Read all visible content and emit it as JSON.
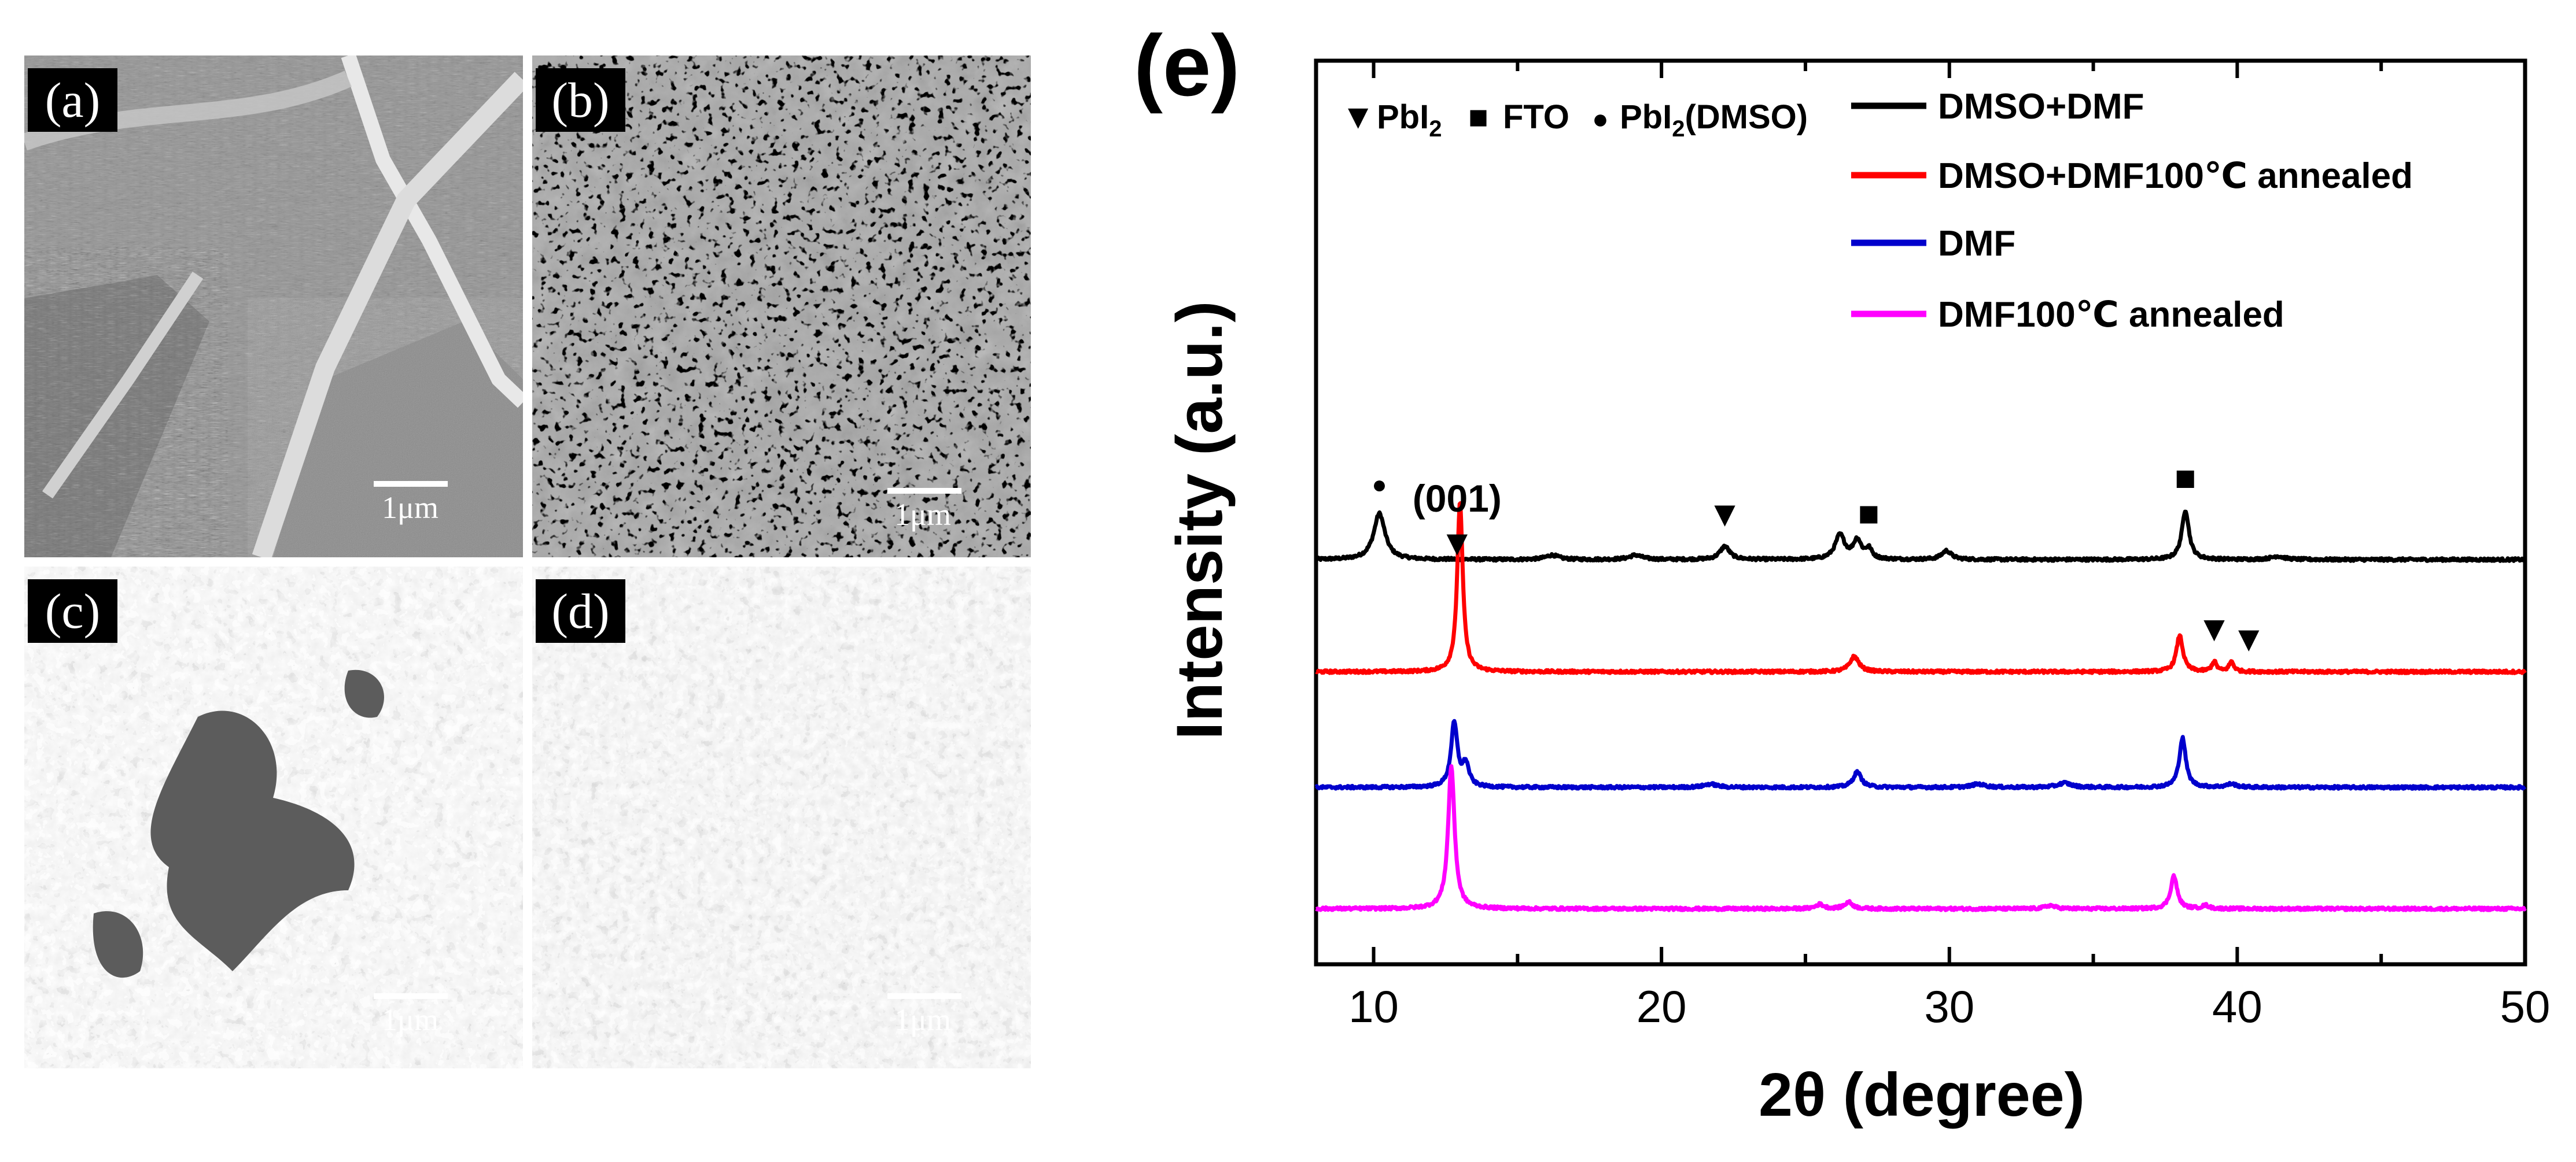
{
  "figure": {
    "sem_panels": [
      {
        "label": "(a)",
        "scale_text": "1μm"
      },
      {
        "label": "(b)",
        "scale_text": "1μm"
      },
      {
        "label": "(c)",
        "scale_text": "1μm"
      },
      {
        "label": "(d)",
        "scale_text": "1μm"
      }
    ]
  },
  "chart_data": {
    "type": "line",
    "panel_label": "(e)",
    "xlabel": "2θ (degree)",
    "ylabel": "Intensity (a.u.)",
    "xlim": [
      8,
      50
    ],
    "xticks": [
      10,
      20,
      30,
      40,
      50
    ],
    "yticks_shown": false,
    "grid": false,
    "symbol_legend": [
      {
        "symbol": "▼",
        "label": "PbI",
        "subscript": "2"
      },
      {
        "symbol": "■",
        "label": "FTO"
      },
      {
        "symbol": "●",
        "label": "PbI",
        "subscript": "2",
        "suffix": "(DMSO)"
      }
    ],
    "legend_position": "top-right",
    "series": [
      {
        "name": "DMSO+DMF",
        "color": "#000000",
        "peaks": [
          {
            "x": 10.2,
            "h": 0.42,
            "w": 0.35
          },
          {
            "x": 16.2,
            "h": 0.04,
            "w": 0.4
          },
          {
            "x": 19.1,
            "h": 0.04,
            "w": 0.4
          },
          {
            "x": 22.2,
            "h": 0.12,
            "w": 0.3
          },
          {
            "x": 26.2,
            "h": 0.22,
            "w": 0.3
          },
          {
            "x": 26.8,
            "h": 0.17,
            "w": 0.25
          },
          {
            "x": 27.2,
            "h": 0.09,
            "w": 0.2
          },
          {
            "x": 29.9,
            "h": 0.08,
            "w": 0.3
          },
          {
            "x": 38.2,
            "h": 0.45,
            "w": 0.22
          },
          {
            "x": 41.4,
            "h": 0.03,
            "w": 0.4
          }
        ]
      },
      {
        "name": "DMSO+DMF100℃ annealed",
        "color": "#ff0000",
        "peaks": [
          {
            "x": 13.0,
            "h": 1.55,
            "w": 0.17
          },
          {
            "x": 26.7,
            "h": 0.14,
            "w": 0.28
          },
          {
            "x": 38.0,
            "h": 0.33,
            "w": 0.2
          },
          {
            "x": 39.2,
            "h": 0.09,
            "w": 0.15
          },
          {
            "x": 39.8,
            "h": 0.09,
            "w": 0.15
          }
        ]
      },
      {
        "name": "DMF",
        "color": "#0000cc",
        "peaks": [
          {
            "x": 12.8,
            "h": 0.58,
            "w": 0.2
          },
          {
            "x": 13.2,
            "h": 0.2,
            "w": 0.2
          },
          {
            "x": 21.7,
            "h": 0.03,
            "w": 0.4
          },
          {
            "x": 26.8,
            "h": 0.14,
            "w": 0.25
          },
          {
            "x": 31.0,
            "h": 0.03,
            "w": 0.4
          },
          {
            "x": 34.0,
            "h": 0.04,
            "w": 0.4
          },
          {
            "x": 38.1,
            "h": 0.45,
            "w": 0.2
          },
          {
            "x": 39.8,
            "h": 0.03,
            "w": 0.3
          }
        ]
      },
      {
        "name": "DMF100℃ annealed",
        "color": "#ff00ff",
        "peaks": [
          {
            "x": 12.7,
            "h": 1.3,
            "w": 0.2
          },
          {
            "x": 25.5,
            "h": 0.04,
            "w": 0.25
          },
          {
            "x": 26.5,
            "h": 0.06,
            "w": 0.25
          },
          {
            "x": 33.5,
            "h": 0.03,
            "w": 0.3
          },
          {
            "x": 37.8,
            "h": 0.3,
            "w": 0.2
          },
          {
            "x": 38.9,
            "h": 0.03,
            "w": 0.2
          }
        ]
      }
    ],
    "annotations": [
      {
        "text": "(001)",
        "x": 12.9,
        "series": 1,
        "marker": "▼"
      },
      {
        "text": "",
        "x": 10.2,
        "series": 0,
        "marker": "●"
      },
      {
        "text": "",
        "x": 22.2,
        "series": 0,
        "marker": "▼"
      },
      {
        "text": "",
        "x": 27.2,
        "series": 0,
        "marker": "■"
      },
      {
        "text": "",
        "x": 38.2,
        "series": 0,
        "marker": "■"
      },
      {
        "text": "",
        "x": 39.2,
        "series": 1,
        "marker": "▼"
      },
      {
        "text": "",
        "x": 40.4,
        "series": 1,
        "marker": "▼"
      }
    ]
  }
}
